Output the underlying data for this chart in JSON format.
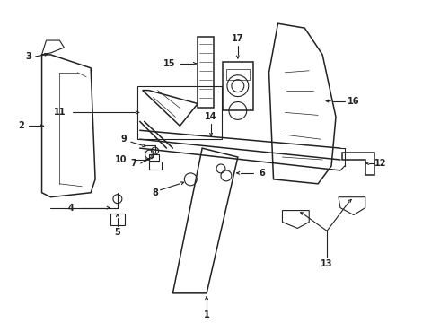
{
  "bg_color": "#ffffff",
  "line_color": "#222222",
  "fig_width": 4.9,
  "fig_height": 3.6,
  "dpi": 100
}
